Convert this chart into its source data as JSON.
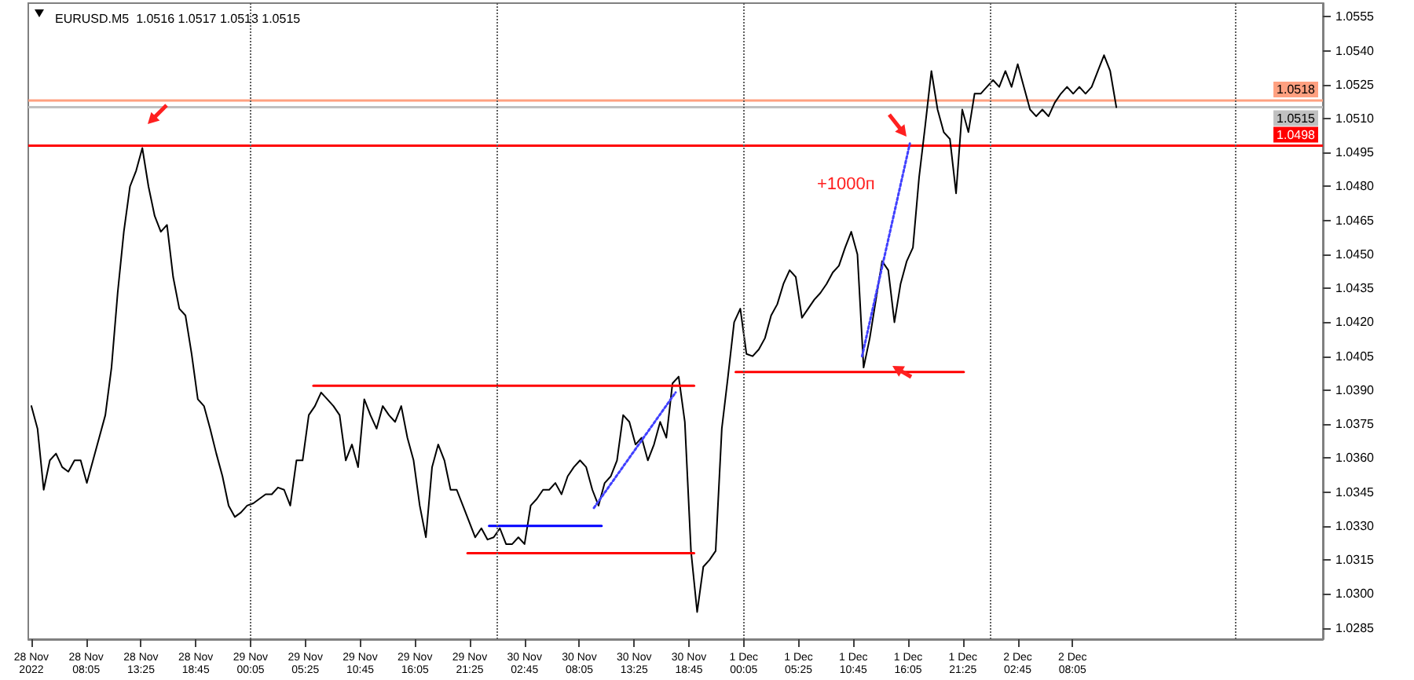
{
  "chart_data": {
    "type": "line",
    "title": "EURUSD.M5  1.0516 1.0517 1.0513 1.0515",
    "annotations": [
      "+1000п"
    ],
    "x": [
      "2022-11-28T02:45",
      "2022-11-28T03:21",
      "2022-11-28T03:57",
      "2022-11-28T04:33",
      "2022-11-28T05:09",
      "2022-11-28T05:45",
      "2022-11-28T06:21",
      "2022-11-28T06:57",
      "2022-11-28T07:33",
      "2022-11-28T08:09",
      "2022-11-28T08:45",
      "2022-11-28T09:21",
      "2022-11-28T09:57",
      "2022-11-28T10:33",
      "2022-11-28T11:09",
      "2022-11-28T11:45",
      "2022-11-28T12:21",
      "2022-11-28T12:57",
      "2022-11-28T13:33",
      "2022-11-28T14:09",
      "2022-11-28T14:45",
      "2022-11-28T15:21",
      "2022-11-28T15:57",
      "2022-11-28T16:33",
      "2022-11-28T17:09",
      "2022-11-28T17:45",
      "2022-11-28T18:21",
      "2022-11-28T18:57",
      "2022-11-28T19:33",
      "2022-11-28T20:09",
      "2022-11-28T20:45",
      "2022-11-28T21:21",
      "2022-11-28T21:57",
      "2022-11-28T22:33",
      "2022-11-28T23:09",
      "2022-11-28T23:45",
      "2022-11-29T00:21",
      "2022-11-29T00:57",
      "2022-11-29T01:33",
      "2022-11-29T02:09",
      "2022-11-29T02:45",
      "2022-11-29T03:21",
      "2022-11-29T03:57",
      "2022-11-29T04:33",
      "2022-11-29T05:09",
      "2022-11-29T05:45",
      "2022-11-29T06:21",
      "2022-11-29T06:57",
      "2022-11-29T07:33",
      "2022-11-29T08:09",
      "2022-11-29T08:45",
      "2022-11-29T09:21",
      "2022-11-29T09:57",
      "2022-11-29T10:33",
      "2022-11-29T11:09",
      "2022-11-29T11:45",
      "2022-11-29T12:21",
      "2022-11-29T12:57",
      "2022-11-29T13:33",
      "2022-11-29T14:09",
      "2022-11-29T14:45",
      "2022-11-29T15:21",
      "2022-11-29T15:57",
      "2022-11-29T16:33",
      "2022-11-29T17:09",
      "2022-11-29T17:45",
      "2022-11-29T18:21",
      "2022-11-29T18:57",
      "2022-11-29T19:33",
      "2022-11-29T20:09",
      "2022-11-29T20:45",
      "2022-11-29T21:21",
      "2022-11-29T21:57",
      "2022-11-29T22:33",
      "2022-11-29T23:09",
      "2022-11-29T23:45",
      "2022-11-30T00:21",
      "2022-11-30T00:57",
      "2022-11-30T01:33",
      "2022-11-30T02:09",
      "2022-11-30T02:45",
      "2022-11-30T03:21",
      "2022-11-30T03:57",
      "2022-11-30T04:33",
      "2022-11-30T05:09",
      "2022-11-30T05:45",
      "2022-11-30T06:21",
      "2022-11-30T06:57",
      "2022-11-30T07:33",
      "2022-11-30T08:09",
      "2022-11-30T08:45",
      "2022-11-30T09:21",
      "2022-11-30T09:57",
      "2022-11-30T10:33",
      "2022-11-30T11:09",
      "2022-11-30T11:45",
      "2022-11-30T12:21",
      "2022-11-30T12:57",
      "2022-11-30T13:33",
      "2022-11-30T14:09",
      "2022-11-30T14:45",
      "2022-11-30T15:21",
      "2022-11-30T15:57",
      "2022-11-30T16:33",
      "2022-11-30T17:09",
      "2022-11-30T17:45",
      "2022-11-30T18:21",
      "2022-11-30T18:57",
      "2022-11-30T19:33",
      "2022-11-30T20:09",
      "2022-11-30T20:45",
      "2022-11-30T21:21",
      "2022-11-30T21:57",
      "2022-11-30T22:33",
      "2022-11-30T23:09",
      "2022-11-30T23:45",
      "2022-12-01T00:21",
      "2022-12-01T00:57",
      "2022-12-01T01:33",
      "2022-12-01T02:09",
      "2022-12-01T02:45",
      "2022-12-01T03:21",
      "2022-12-01T03:57",
      "2022-12-01T04:33",
      "2022-12-01T05:09",
      "2022-12-01T05:45",
      "2022-12-01T06:21",
      "2022-12-01T06:57",
      "2022-12-01T07:33",
      "2022-12-01T08:09",
      "2022-12-01T08:45",
      "2022-12-01T09:21",
      "2022-12-01T09:57",
      "2022-12-01T10:33",
      "2022-12-01T11:09",
      "2022-12-01T11:45",
      "2022-12-01T12:21",
      "2022-12-01T12:57",
      "2022-12-01T13:33",
      "2022-12-01T14:09",
      "2022-12-01T14:45",
      "2022-12-01T15:21",
      "2022-12-01T15:57",
      "2022-12-01T16:33",
      "2022-12-01T17:09",
      "2022-12-01T17:45",
      "2022-12-01T18:21",
      "2022-12-01T18:57",
      "2022-12-01T19:33",
      "2022-12-01T20:09",
      "2022-12-01T20:45",
      "2022-12-01T21:21",
      "2022-12-01T21:57",
      "2022-12-01T22:33",
      "2022-12-01T23:09",
      "2022-12-01T23:45",
      "2022-12-02T00:21",
      "2022-12-02T00:57",
      "2022-12-02T01:33",
      "2022-12-02T02:09",
      "2022-12-02T02:45",
      "2022-12-02T03:21",
      "2022-12-02T03:57",
      "2022-12-02T04:33",
      "2022-12-02T05:09",
      "2022-12-02T05:45",
      "2022-12-02T06:21",
      "2022-12-02T06:57",
      "2022-12-02T07:33",
      "2022-12-02T08:09",
      "2022-12-02T08:45",
      "2022-12-02T09:21",
      "2022-12-02T09:57",
      "2022-12-02T10:33",
      "2022-12-02T11:09",
      "2022-12-02T11:45",
      "2022-12-02T12:21"
    ],
    "series": [
      {
        "color": "#000000",
        "values": [
          1.0383,
          1.0373,
          1.0346,
          1.0359,
          1.0362,
          1.0356,
          1.0354,
          1.0359,
          1.0359,
          1.0349,
          1.0359,
          1.0369,
          1.0379,
          1.04,
          1.0433,
          1.046,
          1.048,
          1.0487,
          1.0497,
          1.048,
          1.0467,
          1.046,
          1.0463,
          1.044,
          1.0426,
          1.0423,
          1.0406,
          1.0386,
          1.0383,
          1.0373,
          1.0362,
          1.0352,
          1.0339,
          1.0334,
          1.0336,
          1.0339,
          1.034,
          1.0342,
          1.0344,
          1.0344,
          1.0347,
          1.0346,
          1.0339,
          1.0359,
          1.0359,
          1.0379,
          1.0383,
          1.0389,
          1.0386,
          1.0383,
          1.0379,
          1.0359,
          1.0366,
          1.0356,
          1.0386,
          1.0379,
          1.0373,
          1.0383,
          1.0379,
          1.0376,
          1.0383,
          1.0369,
          1.0359,
          1.0339,
          1.0325,
          1.0356,
          1.0366,
          1.0359,
          1.0346,
          1.0346,
          1.0339,
          1.0332,
          1.0325,
          1.0329,
          1.0324,
          1.0325,
          1.0329,
          1.0322,
          1.0322,
          1.0325,
          1.0322,
          1.0339,
          1.0342,
          1.0346,
          1.0346,
          1.0349,
          1.0344,
          1.0352,
          1.0356,
          1.0359,
          1.0356,
          1.0346,
          1.0339,
          1.0349,
          1.0352,
          1.0359,
          1.0379,
          1.0376,
          1.0366,
          1.0369,
          1.0359,
          1.0366,
          1.0376,
          1.0369,
          1.0393,
          1.0396,
          1.0376,
          1.0319,
          1.0292,
          1.0312,
          1.0315,
          1.0319,
          1.0373,
          1.0396,
          1.042,
          1.0426,
          1.0406,
          1.0405,
          1.0408,
          1.0413,
          1.0423,
          1.0428,
          1.0437,
          1.0443,
          1.044,
          1.0422,
          1.0426,
          1.043,
          1.0433,
          1.0437,
          1.0442,
          1.0445,
          1.0453,
          1.046,
          1.045,
          1.04,
          1.0413,
          1.043,
          1.0447,
          1.0443,
          1.042,
          1.0437,
          1.0447,
          1.0453,
          1.0484,
          1.0507,
          1.0531,
          1.0514,
          1.0504,
          1.0501,
          1.0477,
          1.0514,
          1.0504,
          1.0521,
          1.0521,
          1.0524,
          1.0527,
          1.0524,
          1.0531,
          1.0524,
          1.0534,
          1.0524,
          1.0514,
          1.0511,
          1.0514,
          1.0511,
          1.0517,
          1.0521,
          1.0524,
          1.0521,
          1.0524,
          1.0521,
          1.0524,
          1.0531,
          1.0538,
          1.0531,
          1.0515
        ]
      },
      {
        "type": "line",
        "color": "#ff0000",
        "x": [
          "2022-11-29T06:12",
          "2022-11-30T19:15"
        ],
        "values": [
          1.0392,
          1.0392
        ]
      },
      {
        "type": "line",
        "color": "#ff0000",
        "x": [
          "2022-11-29T21:12",
          "2022-11-30T19:15"
        ],
        "values": [
          1.0318,
          1.0318
        ]
      },
      {
        "type": "line",
        "color": "#0000ff",
        "x": [
          "2022-11-29T23:18",
          "2022-11-30T10:15"
        ],
        "values": [
          1.033,
          1.033
        ]
      },
      {
        "type": "line",
        "color": "#ff0000",
        "x": [
          "2022-11-30T23:18",
          "2022-12-01T21:30"
        ],
        "values": [
          1.0398,
          1.0398
        ]
      },
      {
        "type": "line",
        "color": "#4040ff",
        "line_style": "dotted",
        "x": [
          "2022-12-01T11:36",
          "2022-12-01T16:15"
        ],
        "values": [
          1.0405,
          1.0499
        ]
      },
      {
        "type": "line",
        "color": "#4040ff",
        "line_style": "dotted",
        "x": [
          "2022-11-30T09:30",
          "2022-11-30T17:27"
        ],
        "values": [
          1.0338,
          1.0389
        ]
      }
    ],
    "xlim": [
      "2022-11-28T02:27",
      "2022-12-03T08:27"
    ],
    "xticks": [
      {
        "value": "2022-11-28T02:45",
        "label": "28 Nov 2022"
      },
      {
        "value": "2022-11-28T08:05",
        "label": "28 Nov 08:05"
      },
      {
        "value": "2022-11-28T13:25",
        "label": "28 Nov 13:25"
      },
      {
        "value": "2022-11-28T18:45",
        "label": "28 Nov 18:45"
      },
      {
        "value": "2022-11-29T00:05",
        "label": "29 Nov 00:05"
      },
      {
        "value": "2022-11-29T05:25",
        "label": "29 Nov 05:25"
      },
      {
        "value": "2022-11-29T10:45",
        "label": "29 Nov 10:45"
      },
      {
        "value": "2022-11-29T16:05",
        "label": "29 Nov 16:05"
      },
      {
        "value": "2022-11-29T21:25",
        "label": "29 Nov 21:25"
      },
      {
        "value": "2022-11-30T02:45",
        "label": "30 Nov 02:45"
      },
      {
        "value": "2022-11-30T08:05",
        "label": "30 Nov 08:05"
      },
      {
        "value": "2022-11-30T13:25",
        "label": "30 Nov 13:25"
      },
      {
        "value": "2022-11-30T18:45",
        "label": "30 Nov 18:45"
      },
      {
        "value": "2022-12-01T00:05",
        "label": "1 Dec 00:05"
      },
      {
        "value": "2022-12-01T05:25",
        "label": "1 Dec 05:25"
      },
      {
        "value": "2022-12-01T10:45",
        "label": "1 Dec 10:45"
      },
      {
        "value": "2022-12-01T16:05",
        "label": "1 Dec 16:05"
      },
      {
        "value": "2022-12-01T21:25",
        "label": "1 Dec 21:25"
      },
      {
        "value": "2022-12-02T02:45",
        "label": "2 Dec 02:45"
      },
      {
        "value": "2022-12-02T08:05",
        "label": "2 Dec 08:05"
      }
    ],
    "ylim": [
      1.028,
      1.0561
    ],
    "yticks": [
      1.0285,
      {
        "value": 1.03,
        "label": "1.0300"
      },
      1.0315,
      {
        "value": 1.033,
        "label": "1.0330"
      },
      1.0345,
      {
        "value": 1.036,
        "label": "1.0360"
      },
      1.0375,
      {
        "value": 1.039,
        "label": "1.0390"
      },
      1.0405,
      {
        "value": 1.042,
        "label": "1.0420"
      },
      1.0435,
      {
        "value": 1.045,
        "label": "1.0450"
      },
      1.0465,
      {
        "value": 1.048,
        "label": "1.0480"
      },
      1.0495,
      {
        "value": 1.051,
        "label": "1.0510"
      },
      1.0525,
      {
        "value": 1.054,
        "label": "1.0540"
      },
      1.0555
    ],
    "ref_lines": [
      {
        "axis": "y",
        "value": 1.0518,
        "label": "1.0518",
        "color": "#ffa080"
      },
      {
        "axis": "y",
        "value": 1.0515,
        "label": "1.0515",
        "color": "#c0c0c0"
      },
      {
        "axis": "y",
        "value": 1.0498,
        "label": "1.0498",
        "color": "#ff0000"
      },
      {
        "axis": "x",
        "value": "2022-11-29T00:00",
        "color": "#606060",
        "line_style": "dotted"
      },
      {
        "axis": "x",
        "value": "2022-11-30T00:00",
        "color": "#606060",
        "line_style": "dotted"
      },
      {
        "axis": "x",
        "value": "2022-12-01T00:00",
        "color": "#606060",
        "line_style": "dotted"
      },
      {
        "axis": "x",
        "value": "2022-12-02T00:00",
        "color": "#606060",
        "line_style": "dotted"
      },
      {
        "axis": "x",
        "value": "2022-12-03T00:00",
        "color": "#606060",
        "line_style": "dotted"
      }
    ]
  }
}
